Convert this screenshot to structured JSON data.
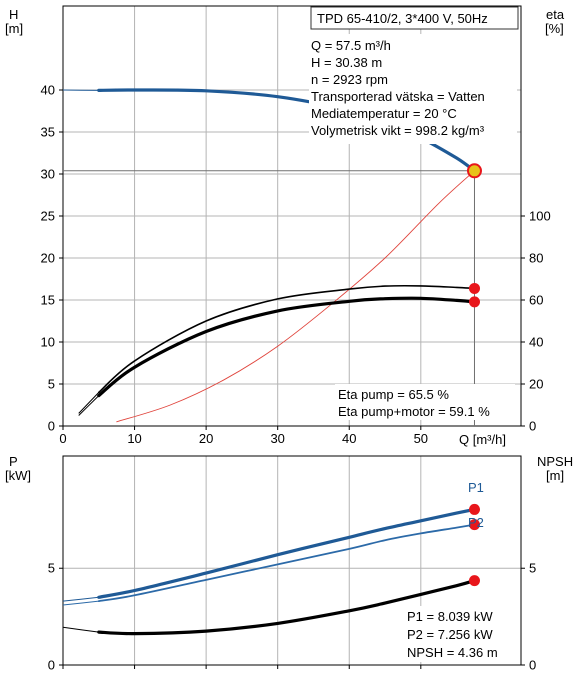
{
  "colors": {
    "head_curve": "#1f5a96",
    "efficiency_curve": "#000000",
    "system_curve": "#e0443c",
    "p1_curve": "#1f5a96",
    "p2_curve": "#2c6aa8",
    "npsh_curve": "#000000",
    "duty_marker": "#e8161b",
    "duty_marker_ring": "#e8c21b",
    "grid": "#b4b4b4",
    "frame": "#000000",
    "pump_label": "#1f5a96"
  },
  "info_box": {
    "title": "TPD 65-410/2, 3*400 V, 50Hz"
  },
  "top_panel_text": {
    "y_left_unit_line1": "H",
    "y_left_unit_line2": "[m]",
    "y_right_unit_line1": "eta",
    "y_right_unit_line2": "[%]",
    "x_label": "Q [m³/h]",
    "duty_lines": [
      "Q = 57.5 m³/h",
      "H = 30.38 m",
      "n = 2923 rpm",
      "Transporterad vätska = Vatten",
      "Mediatemperatur = 20 °C",
      "Volymetrisk vikt = 998.2 kg/m³"
    ],
    "eta_lines": [
      "Eta pump = 65.5 %",
      "Eta pump+motor = 59.1 %"
    ]
  },
  "bottom_panel_text": {
    "y_left_unit_line1": "P",
    "y_left_unit_line2": "[kW]",
    "y_right_unit_line1": "NPSH",
    "y_right_unit_line2": "[m]",
    "p1_label": "P1",
    "p2_label": "P2",
    "result_lines": [
      "P1 = 8.039 kW",
      "P2 = 7.256 kW",
      "NPSH = 4.36 m"
    ]
  },
  "chart_data": [
    {
      "type": "line",
      "title": "TPD 65-410/2, 3*400 V, 50Hz",
      "xlabel": "Q [m³/h]",
      "ylabel": "H [m]",
      "y2label": "eta [%]",
      "xlim": [
        0,
        64
      ],
      "ylim": [
        0,
        50
      ],
      "y2lim": [
        0,
        200
      ],
      "x_ticks": [
        0,
        10,
        20,
        30,
        40,
        50
      ],
      "y_ticks": [
        0,
        5,
        10,
        15,
        20,
        25,
        30,
        35,
        40
      ],
      "y2_ticks": [
        0,
        20,
        40,
        60,
        80,
        100
      ],
      "grid": true,
      "series": [
        {
          "key": "head",
          "axis": "left",
          "x": [
            5,
            10,
            20,
            30,
            40,
            45,
            50,
            55,
            57.5
          ],
          "y": [
            39.95,
            40.0,
            39.9,
            39.2,
            37.6,
            36.2,
            34.3,
            31.9,
            30.38
          ],
          "lead_x": [
            0,
            5
          ],
          "lead_y": [
            40.0,
            39.95
          ]
        },
        {
          "key": "system",
          "axis": "left",
          "x": [
            7.5,
            15,
            22.5,
            30,
            37.5,
            45,
            52.5,
            57.5
          ],
          "y": [
            0.5,
            2.5,
            5.5,
            9.5,
            14.5,
            20.0,
            26.5,
            30.38
          ]
        },
        {
          "key": "eta_pump",
          "axis": "right",
          "x": [
            5,
            10,
            20,
            30,
            40,
            45,
            50,
            55,
            57.5
          ],
          "y": [
            16.0,
            31.0,
            50.0,
            60.5,
            65.2,
            66.6,
            66.7,
            66.0,
            65.5
          ],
          "lead_x": [
            2.2,
            5
          ],
          "lead_y": [
            6.0,
            16.0
          ]
        },
        {
          "key": "eta_pump_motor",
          "axis": "right",
          "x": [
            5,
            10,
            20,
            30,
            40,
            45,
            50,
            55,
            57.5
          ],
          "y": [
            14.5,
            28.0,
            45.0,
            54.8,
            59.4,
            60.6,
            60.8,
            59.8,
            59.1
          ],
          "lead_x": [
            2.2,
            5
          ],
          "lead_y": [
            5.0,
            14.5
          ]
        }
      ],
      "duty_point": {
        "x": 57.5,
        "head": 30.38,
        "eta_pump": 65.5,
        "eta_pump_motor": 59.1
      }
    },
    {
      "type": "line",
      "ylabel": "P [kW]",
      "y2label": "NPSH [m]",
      "xlim": [
        0,
        64
      ],
      "ylim": [
        0,
        10.8
      ],
      "y2lim": [
        0,
        10.8
      ],
      "x_ticks": [
        0,
        10,
        20,
        30,
        40,
        50
      ],
      "y_ticks": [
        0,
        5
      ],
      "y2_ticks": [
        0,
        5
      ],
      "grid": true,
      "series": [
        {
          "key": "p1",
          "name": "P1",
          "axis": "left",
          "x": [
            5,
            10,
            20,
            30,
            40,
            45,
            50,
            55,
            57.5
          ],
          "y": [
            3.5,
            3.85,
            4.75,
            5.7,
            6.6,
            7.05,
            7.45,
            7.85,
            8.039
          ],
          "lead_x": [
            0,
            5
          ],
          "lead_y": [
            3.3,
            3.5
          ]
        },
        {
          "key": "p2",
          "name": "P2",
          "axis": "left",
          "x": [
            5,
            10,
            20,
            30,
            40,
            45,
            50,
            55,
            57.5
          ],
          "y": [
            3.3,
            3.6,
            4.4,
            5.2,
            6.0,
            6.45,
            6.8,
            7.1,
            7.256
          ],
          "lead_x": [
            0,
            5
          ],
          "lead_y": [
            3.1,
            3.3
          ]
        },
        {
          "key": "npsh",
          "axis": "right",
          "x": [
            5,
            10,
            20,
            30,
            40,
            45,
            50,
            55,
            57.5
          ],
          "y": [
            1.7,
            1.62,
            1.75,
            2.15,
            2.8,
            3.2,
            3.65,
            4.1,
            4.36
          ],
          "lead_x": [
            0,
            5
          ],
          "lead_y": [
            1.95,
            1.7
          ]
        }
      ],
      "duty_point": {
        "x": 57.5,
        "p1": 8.039,
        "p2": 7.256,
        "npsh": 4.36
      }
    }
  ]
}
